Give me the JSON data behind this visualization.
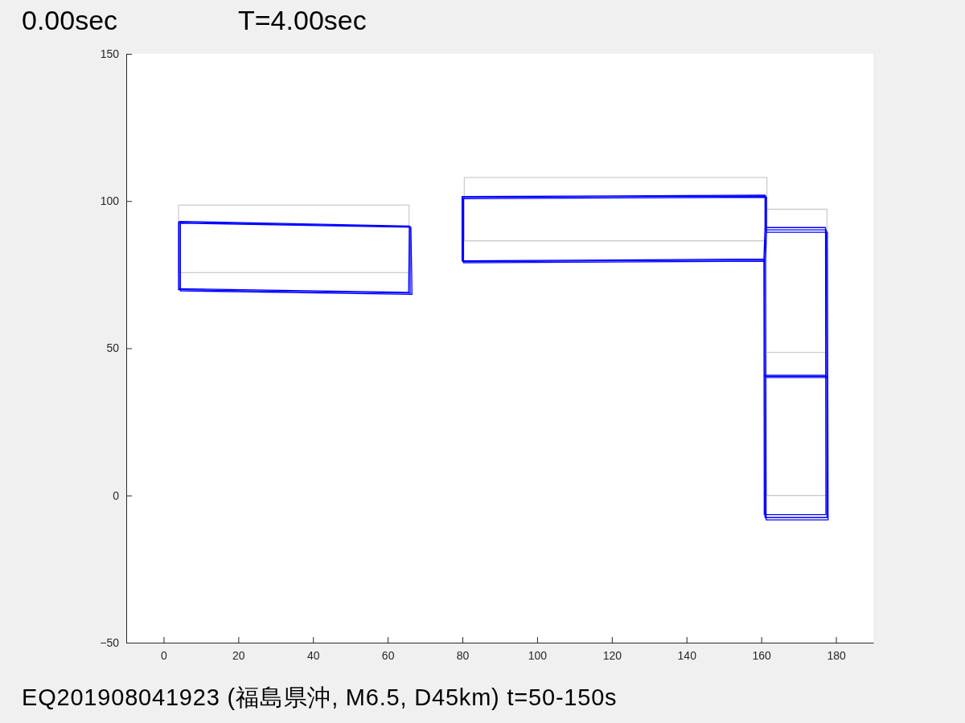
{
  "chart_data": {
    "type": "line",
    "title": "0.00sec",
    "subtitle": "T=4.00sec",
    "annotations": [
      "EQ201908041923 (福島県沖, M6.5, D45km) t=50-150s"
    ],
    "xlim": [
      -10,
      190
    ],
    "ylim": [
      -50,
      150
    ],
    "xticks": [
      0,
      20,
      40,
      60,
      80,
      100,
      120,
      140,
      160,
      180
    ],
    "yticks": [
      {
        "value": -50,
        "label": "−50"
      },
      0,
      50,
      100,
      150
    ],
    "series": [
      {
        "color": "#cccccc",
        "x": [
          4,
          4,
          65.7,
          65.7
        ],
        "values": [
          75.7,
          98.6,
          98.6,
          75.7
        ]
      },
      {
        "color": "#cccccc",
        "x": [
          4,
          65.7
        ],
        "values": [
          75.7,
          75.7
        ]
      },
      {
        "color": "#cccccc",
        "x": [
          161.5,
          161.5,
          80.5,
          80.5,
          160.8
        ],
        "values": [
          89.4,
          108,
          108,
          86.5,
          86.5
        ]
      },
      {
        "color": "#cccccc",
        "x": [
          161.4,
          161.4,
          177.6,
          177.6,
          161.5
        ],
        "values": [
          86.5,
          0,
          0,
          97.2,
          97.2
        ]
      },
      {
        "color": "#cccccc",
        "x": [
          161.4,
          177.6
        ],
        "values": [
          48.6,
          48.6
        ]
      },
      {
        "color": "#0000ff",
        "x": [
          4.2,
          4.2,
          65.8,
          65.6
        ],
        "values": [
          70.2,
          93.1,
          91.5,
          69.0
        ]
      },
      {
        "color": "#0000ff",
        "x": [
          4.2,
          65.6
        ],
        "values": [
          70.2,
          69.0
        ]
      },
      {
        "color": "#0000ff",
        "x": [
          161.2,
          161.2,
          80.1,
          80.1,
          160.9,
          161.0,
          177.6,
          177.4,
          161.2,
          160.9
        ],
        "values": [
          89.7,
          101.7,
          101.2,
          79.4,
          80.0,
          -7.5,
          -7.5,
          90.2,
          90.2,
          80.0
        ]
      },
      {
        "color": "#0000ff",
        "x": [
          161.0,
          177.5
        ],
        "values": [
          40.5,
          40.5
        ]
      },
      {
        "color": "#0000ff",
        "x": [
          4.5,
          4.5,
          66.2,
          66.5
        ],
        "values": [
          69.5,
          92.5,
          91.1,
          68.3
        ]
      },
      {
        "color": "#0000ff",
        "x": [
          4.5,
          66.5
        ],
        "values": [
          69.5,
          68.3
        ]
      },
      {
        "color": "#0000ff",
        "x": [
          161.4,
          161.4,
          80.3,
          80.3,
          161.1,
          161.3,
          177.9,
          177.7,
          161.4,
          161.1
        ],
        "values": [
          89.0,
          101.3,
          100.8,
          79.0,
          79.6,
          -8.3,
          -8.3,
          89.4,
          89.4,
          79.6
        ]
      },
      {
        "color": "#0000ff",
        "x": [
          161.2,
          177.7
        ],
        "values": [
          40.1,
          40.1
        ]
      },
      {
        "color": "#0000ff",
        "x": [
          4.0,
          4.0,
          66.0,
          66.0
        ],
        "values": [
          69.9,
          92.8,
          91.3,
          68.7
        ]
      },
      {
        "color": "#0000ff",
        "x": [
          4.0,
          66.0
        ],
        "values": [
          69.9,
          68.7
        ]
      },
      {
        "color": "#0000ff",
        "x": [
          161.0,
          161.0,
          79.9,
          79.9,
          160.7,
          160.8,
          177.3,
          177.2,
          161.0,
          160.7
        ],
        "values": [
          90.2,
          102.0,
          101.5,
          79.7,
          80.3,
          -6.5,
          -6.5,
          91.0,
          91.0,
          80.3
        ]
      },
      {
        "color": "#0000ff",
        "x": [
          160.8,
          177.3
        ],
        "values": [
          40.8,
          40.8
        ]
      }
    ]
  }
}
